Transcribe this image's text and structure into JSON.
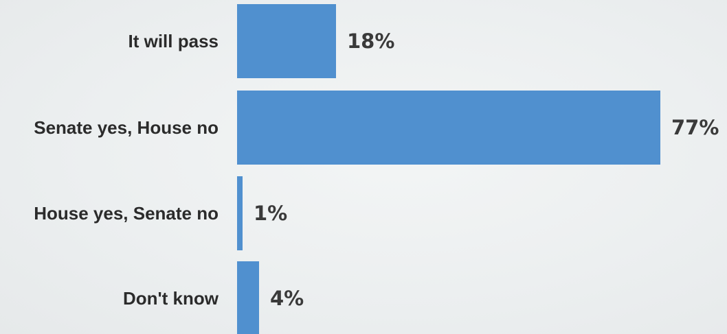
{
  "chart_data": {
    "type": "bar",
    "orientation": "horizontal",
    "categories": [
      "It will pass",
      "Senate yes, House no",
      "House yes, Senate no",
      "Don't know"
    ],
    "values": [
      18,
      77,
      1,
      4
    ],
    "value_labels": [
      "18%",
      "77%",
      "1%",
      "4%"
    ],
    "unit": "%",
    "xlim": [
      0,
      100
    ],
    "grid": false,
    "legend": "none",
    "bar_color": "#5090cf",
    "background_color": "#ebeeef"
  }
}
